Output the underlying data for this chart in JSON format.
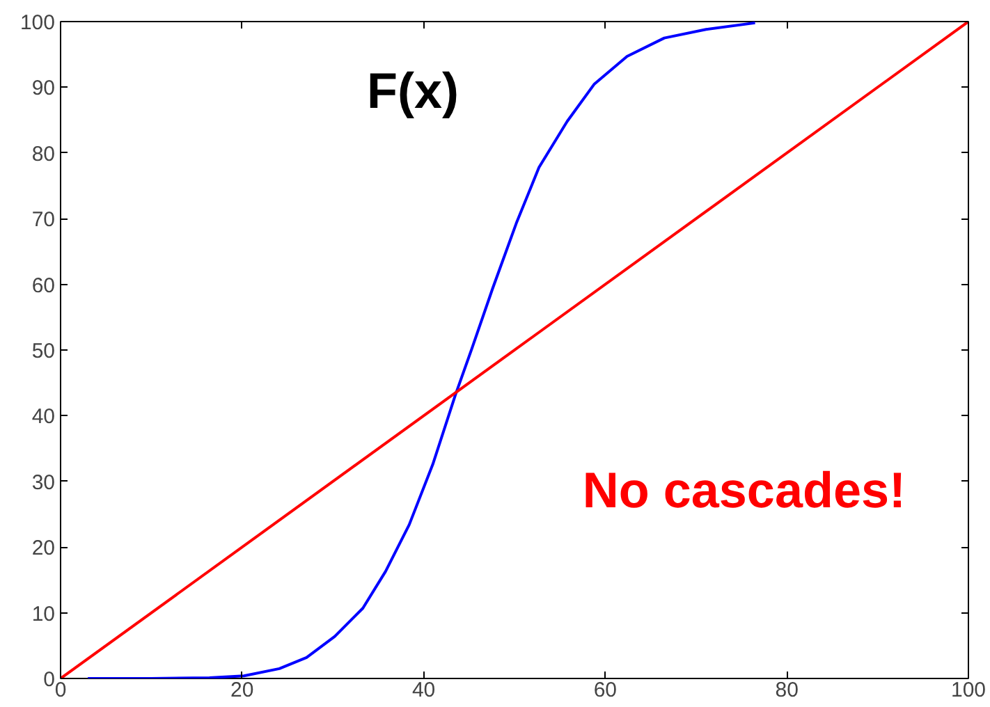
{
  "chart_data": {
    "type": "line",
    "xlim": [
      0,
      100
    ],
    "ylim": [
      0,
      100
    ],
    "xticks": [
      0,
      20,
      40,
      60,
      80,
      100
    ],
    "yticks": [
      0,
      10,
      20,
      30,
      40,
      50,
      60,
      70,
      80,
      90,
      100
    ],
    "grid": false,
    "line_style": "solid",
    "annotations": [
      "No cascades!"
    ],
    "series": [
      {
        "name": "F(x)",
        "color": "#0000ff",
        "x": [
          3,
          10,
          16.4,
          20.2,
          24.1,
          27.1,
          30.2,
          33.3,
          35.8,
          38.4,
          41.0,
          43.5,
          45.3,
          47.6,
          50.2,
          52.7,
          55.8,
          58.8,
          62.4,
          66.5,
          71.1,
          76.5
        ],
        "values": [
          0,
          0,
          0.1,
          0.4,
          1.5,
          3.2,
          6.4,
          10.7,
          16.3,
          23.4,
          32.6,
          43.2,
          50.2,
          59.4,
          69.3,
          77.8,
          84.8,
          90.5,
          94.7,
          97.5,
          98.8,
          99.8
        ]
      },
      {
        "color": "#ff0000",
        "x": [
          0,
          100
        ],
        "values": [
          0,
          100
        ]
      }
    ]
  }
}
